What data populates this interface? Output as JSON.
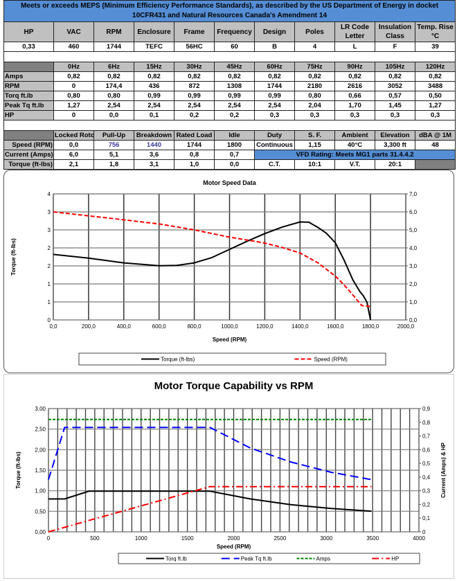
{
  "specs": {
    "title": "Meets or exceeds MEPS (Minimum Efficiency Performance Standards), as described by the US Department of Energy in docket 10CFR431 and Natural Resources Canada's Amendment 14",
    "headers": [
      "HP",
      "VAC",
      "RPM",
      "Enclosure",
      "Frame",
      "Frequency",
      "Design",
      "Poles",
      "LR Code Letter",
      "Insulation Class",
      "Temp. Rise °C"
    ],
    "values": [
      "0,33",
      "460",
      "1744",
      "TEFC",
      "56HC",
      "60",
      "B",
      "4",
      "L",
      "F",
      "39"
    ]
  },
  "freq": {
    "headers": [
      "0Hz",
      "6Hz",
      "15Hz",
      "30Hz",
      "45Hz",
      "60Hz",
      "75Hz",
      "90Hz",
      "105Hz",
      "120Hz"
    ],
    "rows": [
      {
        "label": "Amps",
        "values": [
          "0,82",
          "0,82",
          "0,82",
          "0,82",
          "0,82",
          "0,82",
          "0,82",
          "0,82",
          "0,82",
          "0,82"
        ]
      },
      {
        "label": "RPM",
        "values": [
          "0",
          "174,4",
          "436",
          "872",
          "1308",
          "1744",
          "2180",
          "2616",
          "3052",
          "3488"
        ]
      },
      {
        "label": "Torq ft.lb",
        "values": [
          "0,80",
          "0,80",
          "0,99",
          "0,99",
          "0,99",
          "0,99",
          "0,80",
          "0,66",
          "0,57",
          "0,50"
        ]
      },
      {
        "label": "Peak Tq ft.lb",
        "values": [
          "1,27",
          "2,54",
          "2,54",
          "2,54",
          "2,54",
          "2,54",
          "2,04",
          "1,70",
          "1,45",
          "1,27"
        ]
      },
      {
        "label": "HP",
        "values": [
          "0",
          "0,0",
          "0,1",
          "0,2",
          "0,2",
          "0,3",
          "0,3",
          "0,3",
          "0,3",
          "0,3"
        ]
      }
    ]
  },
  "perf": {
    "headers": [
      "Locked Rotor",
      "Pull-Up",
      "Breakdown",
      "Rated Load",
      "Idle",
      "Duty",
      "S. F.",
      "Ambient",
      "Elevation",
      "dBA @ 1M"
    ],
    "rows": [
      {
        "label": "Speed (RPM)",
        "values": [
          "0,0",
          "756",
          "1440",
          "1744",
          "1800"
        ],
        "extra": [
          "Continuous",
          "1,15",
          "40°C",
          "3,300 ft",
          "48"
        ]
      },
      {
        "label": "Current (Amps)",
        "values": [
          "6,0",
          "5,1",
          "3,6",
          "0,8",
          "0,7"
        ],
        "vfd": "VFD Rating: Meets MG1 parts 31.4.4.2"
      },
      {
        "label": "Torque (ft-lbs)",
        "values": [
          "2,1",
          "1,8",
          "3,1",
          "1,0",
          "0,0"
        ],
        "extra": [
          "C.T.",
          "10:1",
          "V.T.",
          "20:1"
        ]
      }
    ]
  },
  "colors": {
    "header_blue": "#558ed5",
    "header_gray": "#c0c0c0",
    "dark_gray": "#808080"
  },
  "chart_data": [
    {
      "type": "line",
      "title": "Motor Speed Data",
      "xlabel": "Speed (RPM)",
      "ylabel": "Torque (ft-lbs)",
      "xlim": [
        0,
        2000
      ],
      "ylim": [
        0,
        4
      ],
      "y2lim": [
        0,
        7
      ],
      "xticks": [
        "0,0",
        "200,0",
        "400,0",
        "600,0",
        "800,0",
        "1000,0",
        "1200,0",
        "1400,0",
        "1600,0",
        "1800,0",
        "2000,0"
      ],
      "yticks": [
        "0",
        "1",
        "1",
        "2",
        "2",
        "3",
        "3",
        "4"
      ],
      "y2ticks": [
        "0,0",
        "1,0",
        "2,0",
        "3,0",
        "4,0",
        "5,0",
        "6,0",
        "7,0"
      ],
      "grid": true,
      "legend": "bottom",
      "series": [
        {
          "name": "Torque (ft-lbs)",
          "axis": "left",
          "color": "#000000",
          "x": [
            0,
            200,
            400,
            600,
            700,
            800,
            900,
            1000,
            1100,
            1200,
            1300,
            1400,
            1450,
            1500,
            1550,
            1600,
            1650,
            1700,
            1740,
            1760,
            1780,
            1800
          ],
          "y": [
            2.08,
            1.96,
            1.81,
            1.72,
            1.73,
            1.81,
            1.98,
            2.24,
            2.5,
            2.74,
            2.95,
            3.11,
            3.1,
            2.94,
            2.75,
            2.45,
            1.9,
            1.27,
            0.9,
            0.76,
            0.56,
            0
          ]
        },
        {
          "name": "Speed (RPM)",
          "axis": "right",
          "color": "#ff0000",
          "x": [
            0,
            200,
            400,
            600,
            800,
            1000,
            1200,
            1300,
            1400,
            1500,
            1600,
            1650,
            1700,
            1750,
            1800
          ],
          "y": [
            6.0,
            5.78,
            5.56,
            5.33,
            5.0,
            4.6,
            4.27,
            4.02,
            3.72,
            3.18,
            2.44,
            1.95,
            1.39,
            0.8,
            0.75
          ]
        }
      ]
    },
    {
      "type": "line",
      "title": "Motor Torque Capability vs RPM",
      "xlabel": "Speed (RPM)",
      "ylabel": "Torque (ft-lbs)",
      "y2label": "Current (Amps) & HP",
      "xlim": [
        0,
        4000
      ],
      "ylim": [
        0,
        3
      ],
      "y2lim": [
        0,
        0.9
      ],
      "xticks": [
        "0",
        "500",
        "1000",
        "1500",
        "2000",
        "2500",
        "3000",
        "3500",
        "4000"
      ],
      "yticks": [
        "0,00",
        "0,50",
        "1,00",
        "1,50",
        "2,00",
        "2,50",
        "3,00"
      ],
      "y2ticks": [
        "0",
        "0,1",
        "0,2",
        "0,3",
        "0,4",
        "0,5",
        "0,6",
        "0,7",
        "0,8",
        "0,9"
      ],
      "grid": true,
      "legend": "bottom",
      "series": [
        {
          "name": "Torq ft.lb",
          "axis": "left",
          "color": "#000000",
          "dash": "",
          "x": [
            0,
            174.4,
            436,
            872,
            1308,
            1744,
            2180,
            2616,
            3052,
            3488
          ],
          "y": [
            0.8,
            0.8,
            0.99,
            0.99,
            0.99,
            0.99,
            0.8,
            0.66,
            0.57,
            0.5
          ]
        },
        {
          "name": "Peak Tq ft.lb",
          "axis": "left",
          "color": "#0000ff",
          "dash": "12 6",
          "x": [
            0,
            174.4,
            436,
            872,
            1308,
            1744,
            2180,
            2616,
            3052,
            3488
          ],
          "y": [
            1.27,
            2.54,
            2.54,
            2.54,
            2.54,
            2.54,
            2.04,
            1.7,
            1.45,
            1.27
          ]
        },
        {
          "name": "Amps",
          "axis": "right",
          "color": "#008000",
          "dash": "4 2",
          "x": [
            0,
            174.4,
            436,
            872,
            1308,
            1744,
            2180,
            2616,
            3052,
            3488
          ],
          "y": [
            0.82,
            0.82,
            0.82,
            0.82,
            0.82,
            0.82,
            0.82,
            0.82,
            0.82,
            0.82
          ]
        },
        {
          "name": "HP",
          "axis": "right",
          "color": "#ff0000",
          "dash": "10 4 2 4",
          "x": [
            0,
            174.4,
            436,
            872,
            1308,
            1744,
            2180,
            2616,
            3052,
            3488
          ],
          "y": [
            0,
            0.033,
            0.083,
            0.165,
            0.248,
            0.33,
            0.33,
            0.33,
            0.33,
            0.33
          ]
        }
      ]
    }
  ]
}
